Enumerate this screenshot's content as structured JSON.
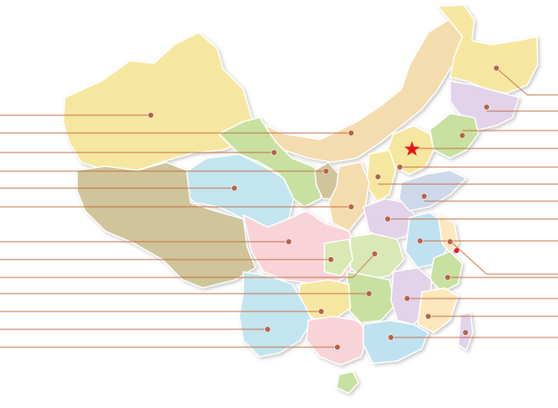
{
  "map": {
    "capital_marker_icon": "red-star-icon",
    "colors": {
      "land_outline_shadow": "#d9d9d9",
      "leader_line": "#c46a3d",
      "marker_dot": "#b5654a",
      "capital_star": "#e8161b",
      "city_dot": "#e8161b",
      "palette": [
        "#f6e7a0",
        "#f3dcae",
        "#c8e0a0",
        "#c3e5ef",
        "#cfc49a",
        "#f8d3d8",
        "#e2d2ea",
        "#cdd8ea",
        "#bfe1f0",
        "#d9e8b4",
        "#fde8bd"
      ]
    },
    "label_count_left": 15,
    "label_count_right": 15
  }
}
